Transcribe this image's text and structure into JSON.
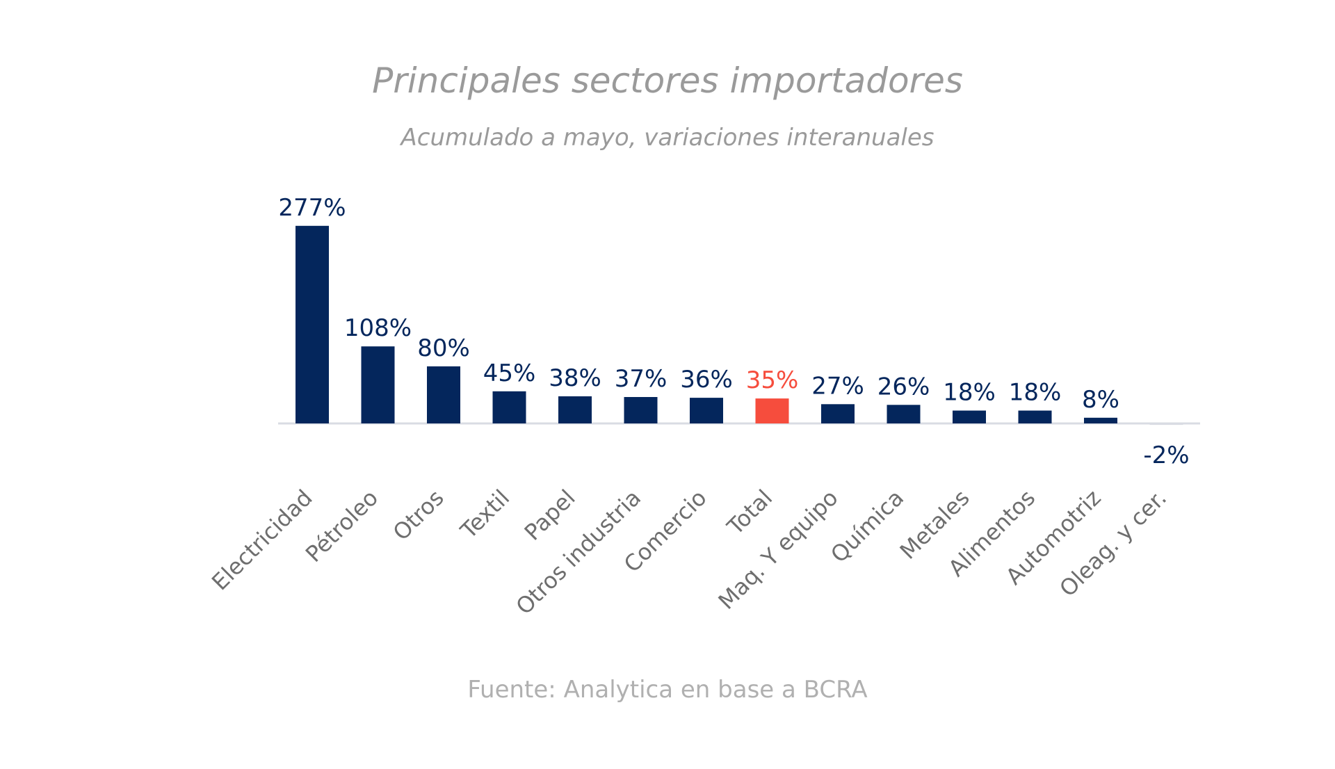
{
  "chart_data": {
    "type": "bar",
    "title": "Principales sectores importadores",
    "subtitle": "Acumulado a mayo, variaciones interanuales",
    "source": "Fuente: Analytica en base a BCRA",
    "categories": [
      "Electricidad",
      "Pétroleo",
      "Otros",
      "Textil",
      "Papel",
      "Otros industria",
      "Comercio",
      "Total",
      "Maq. Y equipo",
      "Química",
      "Metales",
      "Alimentos",
      "Automotriz",
      "Oleag. y cer."
    ],
    "values": [
      277,
      108,
      80,
      45,
      38,
      37,
      36,
      35,
      27,
      26,
      18,
      18,
      8,
      -2
    ],
    "value_labels": [
      "277%",
      "108%",
      "80%",
      "45%",
      "38%",
      "37%",
      "36%",
      "35%",
      "27%",
      "26%",
      "18%",
      "18%",
      "8%",
      "-2%"
    ],
    "highlight_category": "Total",
    "grid": false,
    "legend": "none"
  },
  "colors": {
    "bar": "#04265c",
    "highlight": "#f64d3d",
    "axis": "#d9dce3",
    "title": "#9a9a9a",
    "category_label": "#6e6e6e",
    "source": "#b0b0b0"
  }
}
